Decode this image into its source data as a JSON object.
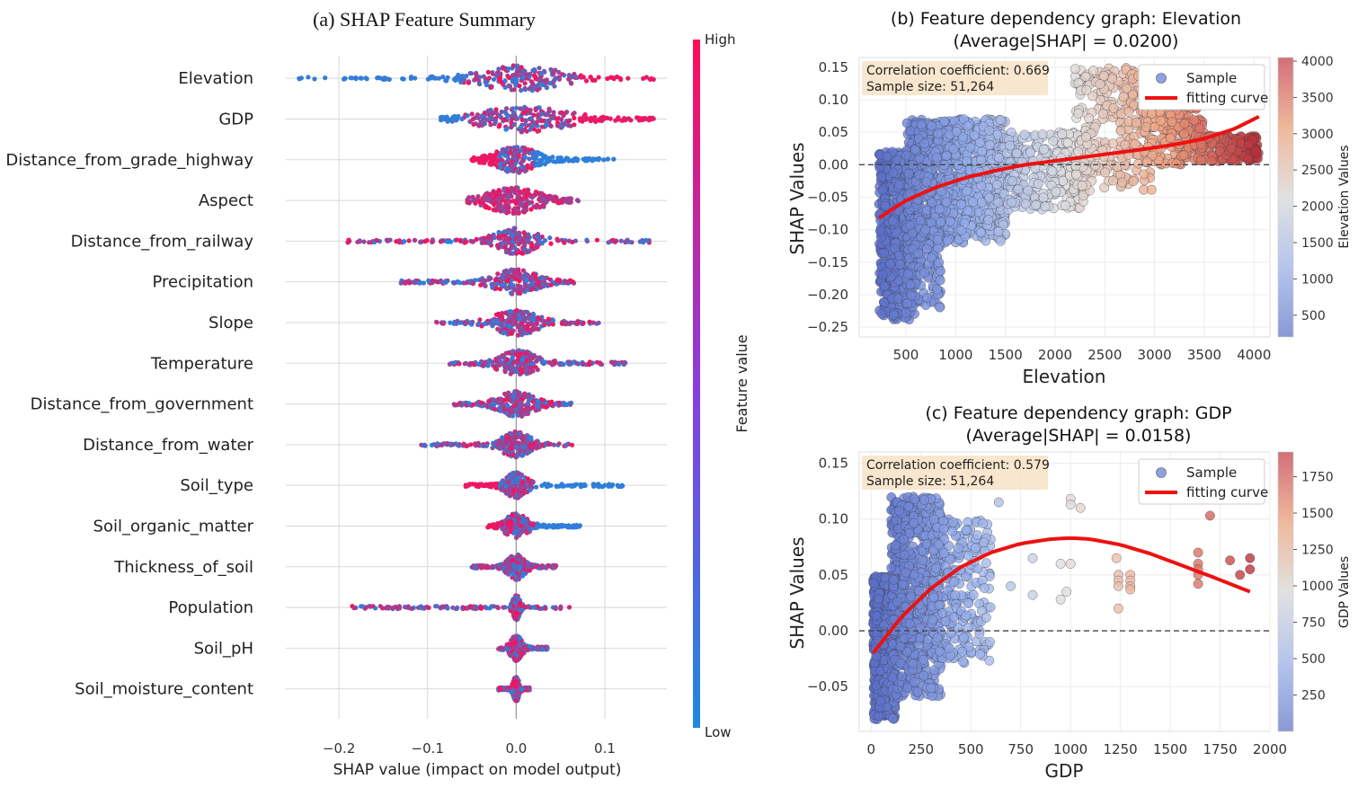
{
  "chart_data": [
    {
      "type": "scatter",
      "title": "(a) SHAP Feature Summary",
      "xlabel": "SHAP value (impact on model output)",
      "xlim": [
        -0.26,
        0.17
      ],
      "xticks": [
        -0.2,
        -0.1,
        0.0,
        0.1
      ],
      "xtick_labels": [
        "−0.2",
        "−0.1",
        "0.0",
        "0.1"
      ],
      "grid": true,
      "colorbar": {
        "label": "Feature value",
        "high_label": "High",
        "low_label": "Low",
        "low_color": "#1e88e5",
        "high_color": "#ff0d57"
      },
      "features": [
        {
          "name": "Elevation",
          "min": -0.245,
          "max": 0.155,
          "core": [
            -0.05,
            0.06
          ]
        },
        {
          "name": "GDP",
          "min": -0.085,
          "max": 0.155,
          "core": [
            -0.05,
            0.07
          ]
        },
        {
          "name": "Distance_from_grade_highway",
          "min": -0.05,
          "max": 0.11,
          "core": [
            -0.03,
            0.03
          ]
        },
        {
          "name": "Aspect",
          "min": -0.055,
          "max": 0.07,
          "core": [
            -0.04,
            0.035
          ]
        },
        {
          "name": "Distance_from_railway",
          "min": -0.19,
          "max": 0.15,
          "core": [
            -0.03,
            0.03
          ]
        },
        {
          "name": "Precipitation",
          "min": -0.13,
          "max": 0.065,
          "core": [
            -0.03,
            0.03
          ]
        },
        {
          "name": "Slope",
          "min": -0.09,
          "max": 0.093,
          "core": [
            -0.03,
            0.03
          ]
        },
        {
          "name": "Temperature",
          "min": -0.075,
          "max": 0.123,
          "core": [
            -0.025,
            0.03
          ]
        },
        {
          "name": "Distance_from_government",
          "min": -0.07,
          "max": 0.062,
          "core": [
            -0.025,
            0.025
          ]
        },
        {
          "name": "Distance_from_water",
          "min": -0.107,
          "max": 0.063,
          "core": [
            -0.02,
            0.02
          ]
        },
        {
          "name": "Soil_type",
          "min": -0.057,
          "max": 0.12,
          "core": [
            -0.015,
            0.015
          ]
        },
        {
          "name": "Soil_organic_matter",
          "min": -0.032,
          "max": 0.072,
          "core": [
            -0.015,
            0.015
          ]
        },
        {
          "name": "Thickness_of_soil",
          "min": -0.05,
          "max": 0.045,
          "core": [
            -0.012,
            0.012
          ]
        },
        {
          "name": "Population",
          "min": -0.185,
          "max": 0.06,
          "core": [
            -0.005,
            0.005
          ]
        },
        {
          "name": "Soil_pH",
          "min": -0.02,
          "max": 0.035,
          "core": [
            -0.008,
            0.008
          ]
        },
        {
          "name": "Soil_moisture_content",
          "min": -0.02,
          "max": 0.015,
          "core": [
            -0.004,
            0.004
          ]
        }
      ]
    },
    {
      "type": "scatter",
      "title": "(b) Feature dependency graph: Elevation",
      "subtitle": "(Average|SHAP| = 0.0200)",
      "xlabel": "Elevation",
      "ylabel": "SHAP Values",
      "xlim": [
        30,
        4160
      ],
      "ylim": [
        -0.265,
        0.165
      ],
      "xticks": [
        500,
        1000,
        1500,
        2000,
        2500,
        3000,
        3500,
        4000
      ],
      "yticks": [
        -0.25,
        -0.2,
        -0.15,
        -0.1,
        -0.05,
        0.0,
        0.05,
        0.1,
        0.15
      ],
      "ytick_labels": [
        "−0.25",
        "−0.20",
        "−0.15",
        "−0.10",
        "−0.05",
        "0.00",
        "0.05",
        "0.10",
        "0.15"
      ],
      "grid": true,
      "annotation": [
        "Correlation coefficient: 0.669",
        "Sample size: 51,264"
      ],
      "legend": {
        "position": "top-right",
        "sample": "Sample",
        "fit": "fitting curve"
      },
      "colorbar": {
        "label": "Elevation Values",
        "min": 200,
        "max": 4050,
        "ticks": [
          500,
          1000,
          1500,
          2000,
          2500,
          3000,
          3500,
          4000
        ]
      },
      "fitting_curve": {
        "x": [
          230,
          500,
          800,
          1100,
          1400,
          1700,
          2000,
          2300,
          2600,
          2900,
          3200,
          3500,
          3800,
          4050
        ],
        "y": [
          -0.082,
          -0.055,
          -0.035,
          -0.02,
          -0.009,
          0.0,
          0.006,
          0.012,
          0.018,
          0.024,
          0.031,
          0.04,
          0.055,
          0.074
        ]
      },
      "clusters": [
        {
          "x": [
            230,
            600
          ],
          "y": [
            -0.24,
            0.02
          ],
          "n": 520
        },
        {
          "x": [
            500,
            1500
          ],
          "y": [
            -0.12,
            0.07
          ],
          "n": 950
        },
        {
          "x": [
            500,
            850
          ],
          "y": [
            -0.22,
            -0.08
          ],
          "n": 170
        },
        {
          "x": [
            1500,
            2300
          ],
          "y": [
            -0.07,
            0.05
          ],
          "n": 260
        },
        {
          "x": [
            2200,
            3000
          ],
          "y": [
            -0.04,
            0.15
          ],
          "n": 280
        },
        {
          "x": [
            2900,
            3500
          ],
          "y": [
            0.0,
            0.11
          ],
          "n": 210
        },
        {
          "x": [
            3400,
            4050
          ],
          "y": [
            0.005,
            0.045
          ],
          "n": 170
        }
      ]
    },
    {
      "type": "scatter",
      "title": "(c) Feature dependency graph: GDP",
      "subtitle": "(Average|SHAP| = 0.0158)",
      "xlabel": "GDP",
      "ylabel": "SHAP Values",
      "xlim": [
        -60,
        2000
      ],
      "ylim": [
        -0.09,
        0.16
      ],
      "xticks": [
        0,
        250,
        500,
        750,
        1000,
        1250,
        1500,
        1750,
        2000
      ],
      "yticks": [
        -0.05,
        0.0,
        0.05,
        0.1,
        0.15
      ],
      "ytick_labels": [
        "−0.05",
        "0.00",
        "0.05",
        "0.10",
        "0.15"
      ],
      "grid": true,
      "annotation": [
        "Correlation coefficient: 0.579",
        "Sample size: 51,264"
      ],
      "legend": {
        "position": "top-right",
        "sample": "Sample",
        "fit": "fitting curve"
      },
      "colorbar": {
        "label": "GDP Values",
        "min": 0,
        "max": 1920,
        "ticks": [
          250,
          500,
          750,
          1000,
          1250,
          1500,
          1750
        ]
      },
      "fitting_curve": {
        "x": [
          10,
          150,
          300,
          450,
          600,
          750,
          900,
          1000,
          1100,
          1250,
          1400,
          1550,
          1700,
          1900
        ],
        "y": [
          -0.02,
          0.012,
          0.038,
          0.057,
          0.07,
          0.078,
          0.082,
          0.083,
          0.082,
          0.077,
          0.069,
          0.059,
          0.049,
          0.035
        ]
      },
      "clusters": [
        {
          "x": [
            10,
            120
          ],
          "y": [
            -0.08,
            0.05
          ],
          "n": 650
        },
        {
          "x": [
            100,
            350
          ],
          "y": [
            -0.06,
            0.12
          ],
          "n": 650
        },
        {
          "x": [
            300,
            600
          ],
          "y": [
            -0.03,
            0.1
          ],
          "n": 230
        }
      ],
      "points": [
        [
          640,
          0.115
        ],
        [
          700,
          0.04
        ],
        [
          810,
          0.065
        ],
        [
          810,
          0.032
        ],
        [
          950,
          0.06
        ],
        [
          950,
          0.028
        ],
        [
          980,
          0.035
        ],
        [
          1000,
          0.118
        ],
        [
          1000,
          0.113
        ],
        [
          1000,
          0.06
        ],
        [
          1050,
          0.11
        ],
        [
          1230,
          0.065
        ],
        [
          1240,
          0.05
        ],
        [
          1240,
          0.045
        ],
        [
          1240,
          0.04
        ],
        [
          1240,
          0.02
        ],
        [
          1300,
          0.05
        ],
        [
          1300,
          0.045
        ],
        [
          1300,
          0.04
        ],
        [
          1300,
          0.037
        ],
        [
          1640,
          0.07
        ],
        [
          1640,
          0.06
        ],
        [
          1640,
          0.055
        ],
        [
          1640,
          0.05
        ],
        [
          1640,
          0.042
        ],
        [
          1700,
          0.103
        ],
        [
          1750,
          0.125
        ],
        [
          1800,
          0.063
        ],
        [
          1850,
          0.05
        ],
        [
          1900,
          0.065
        ],
        [
          1900,
          0.055
        ]
      ]
    }
  ]
}
